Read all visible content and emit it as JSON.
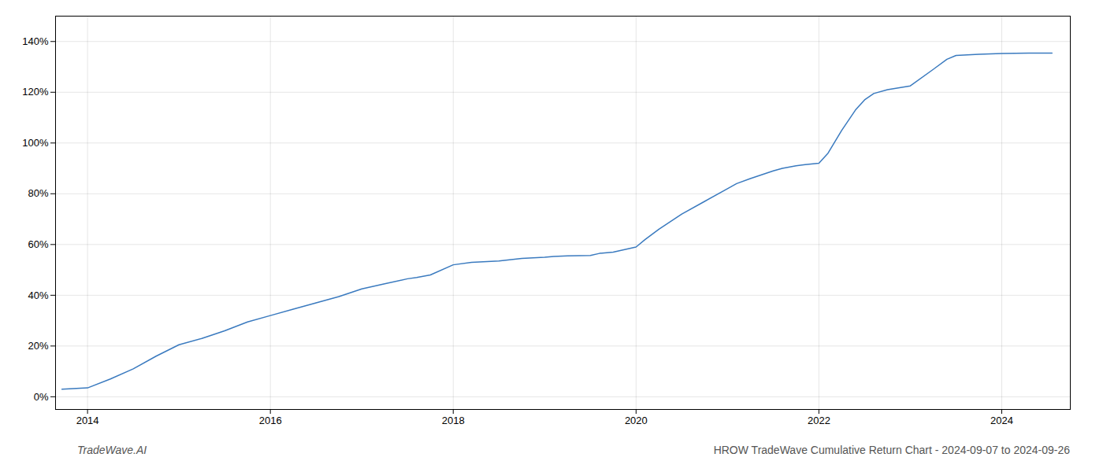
{
  "chart_data": {
    "type": "line",
    "x": [
      2013.72,
      2014.0,
      2014.25,
      2014.5,
      2014.75,
      2015.0,
      2015.25,
      2015.5,
      2015.75,
      2016.0,
      2016.25,
      2016.5,
      2016.75,
      2017.0,
      2017.25,
      2017.5,
      2017.6,
      2017.75,
      2018.0,
      2018.2,
      2018.5,
      2018.75,
      2019.0,
      2019.1,
      2019.25,
      2019.5,
      2019.6,
      2019.75,
      2020.0,
      2020.1,
      2020.25,
      2020.5,
      2020.75,
      2021.0,
      2021.1,
      2021.25,
      2021.5,
      2021.6,
      2021.75,
      2021.85,
      2022.0,
      2022.1,
      2022.25,
      2022.4,
      2022.5,
      2022.6,
      2022.75,
      2023.0,
      2023.25,
      2023.4,
      2023.5,
      2023.75,
      2024.0,
      2024.3,
      2024.55
    ],
    "values": [
      3.0,
      3.5,
      7.0,
      11.0,
      16.0,
      20.5,
      23.0,
      26.0,
      29.5,
      32.0,
      34.5,
      37.0,
      39.5,
      42.5,
      44.5,
      46.5,
      47.0,
      48.0,
      52.0,
      53.0,
      53.5,
      54.5,
      55.0,
      55.3,
      55.5,
      55.7,
      56.5,
      57.0,
      59.0,
      62.0,
      66.0,
      72.0,
      77.0,
      82.0,
      84.0,
      86.0,
      89.0,
      90.0,
      91.0,
      91.5,
      92.0,
      96.0,
      105.0,
      113.0,
      117.0,
      119.5,
      121.0,
      122.5,
      129.0,
      133.0,
      134.5,
      135.0,
      135.3,
      135.4,
      135.4
    ],
    "color": "#3a7abf",
    "xlim": [
      2013.65,
      2024.75
    ],
    "ylim": [
      -5,
      150
    ],
    "xticks": [
      2014,
      2016,
      2018,
      2020,
      2022,
      2024
    ],
    "yticks": [
      {
        "value": 0,
        "label": "0%"
      },
      {
        "value": 20,
        "label": "20%"
      },
      {
        "value": 40,
        "label": "40%"
      },
      {
        "value": 60,
        "label": "60%"
      },
      {
        "value": 80,
        "label": "80%"
      },
      {
        "value": 100,
        "label": "100%"
      },
      {
        "value": 120,
        "label": "120%"
      },
      {
        "value": 140,
        "label": "140%"
      }
    ],
    "grid": true,
    "annotations": [
      "TradeWave.AI",
      "HROW TradeWave Cumulative Return Chart - 2024-09-07 to 2024-09-26"
    ]
  }
}
